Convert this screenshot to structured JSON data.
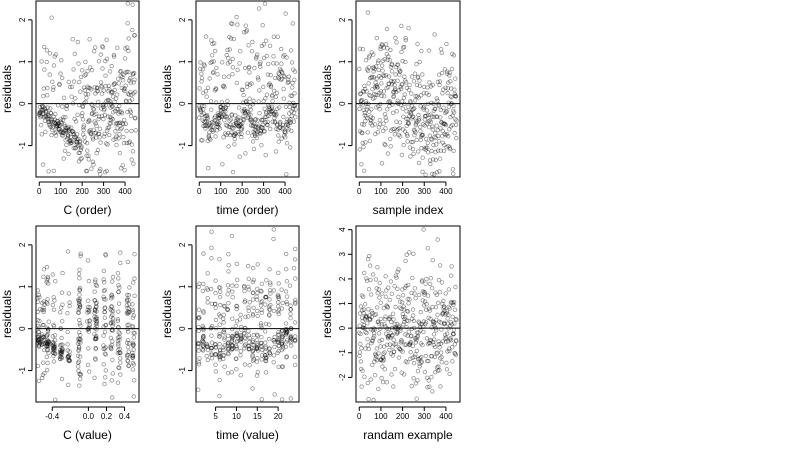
{
  "chart_data": [
    {
      "type": "scatter",
      "panel": "c_order",
      "xlabel": "C (order)",
      "ylabel": "residuals",
      "xlim": [
        -15,
        465
      ],
      "ylim": [
        -1.75,
        2.45
      ],
      "x_ticks": [
        0,
        100,
        200,
        300,
        400
      ],
      "x_tick_labels": [
        "0",
        "100",
        "200",
        "300",
        "400"
      ],
      "y_ticks": [
        -1,
        0,
        1,
        2
      ],
      "y_tick_labels": [
        "-1",
        "0",
        "1",
        "2"
      ],
      "reference_line_y": 0,
      "n_points": 450,
      "generator": {
        "seed": 11,
        "kind": "order_trend"
      }
    },
    {
      "type": "scatter",
      "panel": "time_order",
      "xlabel": "time (order)",
      "ylabel": "residuals",
      "xlim": [
        -15,
        465
      ],
      "ylim": [
        -1.75,
        2.45
      ],
      "x_ticks": [
        0,
        100,
        200,
        300,
        400
      ],
      "x_tick_labels": [
        "0",
        "100",
        "200",
        "300",
        "400"
      ],
      "y_ticks": [
        -1,
        0,
        1,
        2
      ],
      "y_tick_labels": [
        "-1",
        "0",
        "1",
        "2"
      ],
      "reference_line_y": 0,
      "n_points": 450,
      "generator": {
        "seed": 23,
        "kind": "time_wave"
      }
    },
    {
      "type": "scatter",
      "panel": "sample_index",
      "xlabel": "sample index",
      "ylabel": "residuals",
      "xlim": [
        -15,
        465
      ],
      "ylim": [
        -1.75,
        2.45
      ],
      "x_ticks": [
        0,
        100,
        200,
        300,
        400
      ],
      "x_tick_labels": [
        "0",
        "100",
        "200",
        "300",
        "400"
      ],
      "y_ticks": [
        -1,
        0,
        1,
        2
      ],
      "y_tick_labels": [
        "-1",
        "0",
        "1",
        "2"
      ],
      "reference_line_y": 0,
      "n_points": 450,
      "generator": {
        "seed": 37,
        "kind": "mild_structure"
      }
    },
    {
      "type": "scatter",
      "panel": "c_value",
      "xlabel": "C (value)",
      "ylabel": "residuals",
      "xlim": [
        -0.58,
        0.56
      ],
      "ylim": [
        -1.75,
        2.45
      ],
      "x_ticks": [
        -0.4,
        0.0,
        0.2,
        0.4
      ],
      "x_tick_labels": [
        "-0.4",
        "0.0",
        "0.2",
        "0.4"
      ],
      "y_ticks": [
        -1,
        0,
        1,
        2
      ],
      "y_tick_labels": [
        "-1",
        "0",
        "1",
        "2"
      ],
      "reference_line_y": 0,
      "n_points": 450,
      "generator": {
        "seed": 41,
        "kind": "c_value_clusters"
      }
    },
    {
      "type": "scatter",
      "panel": "time_value",
      "xlabel": "time (value)",
      "ylabel": "residuals",
      "xlim": [
        0.3,
        25.0
      ],
      "ylim": [
        -1.75,
        2.45
      ],
      "x_ticks": [
        5,
        10,
        15,
        20
      ],
      "x_tick_labels": [
        "5",
        "10",
        "15",
        "20"
      ],
      "y_ticks": [
        -1,
        0,
        1,
        2
      ],
      "y_tick_labels": [
        "-1",
        "0",
        "1",
        "2"
      ],
      "reference_line_y": 0,
      "n_points": 450,
      "generator": {
        "seed": 53,
        "kind": "time_value_columns"
      }
    },
    {
      "type": "scatter",
      "panel": "random_example",
      "xlabel": "randam example",
      "ylabel": "residuals",
      "xlim": [
        -15,
        465
      ],
      "ylim": [
        -3.0,
        4.15
      ],
      "x_ticks": [
        0,
        100,
        200,
        300,
        400
      ],
      "x_tick_labels": [
        "0",
        "100",
        "200",
        "300",
        "400"
      ],
      "y_ticks": [
        -2,
        -1,
        0,
        1,
        2,
        3,
        4
      ],
      "y_tick_labels": [
        "-2",
        "-1",
        "0",
        "1",
        "2",
        "3",
        "4"
      ],
      "reference_line_y": 0,
      "n_points": 450,
      "generator": {
        "seed": 67,
        "kind": "pure_noise"
      }
    }
  ]
}
